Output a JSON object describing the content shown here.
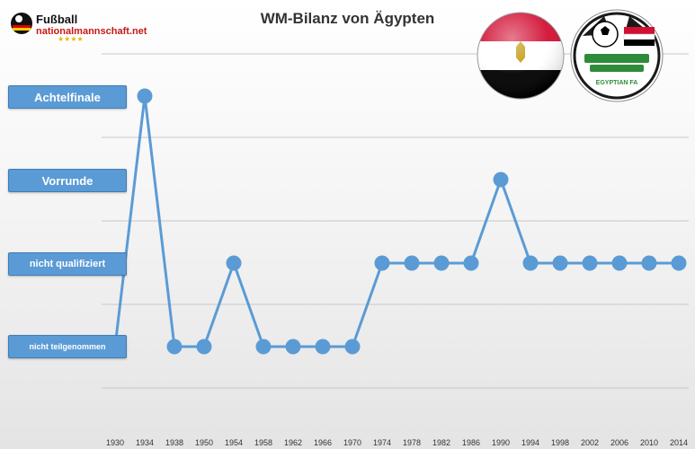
{
  "logo": {
    "line1": "Fußball",
    "line2": "nationalmannschaft.net",
    "stars": "★★★★"
  },
  "chart_data": {
    "type": "line",
    "title": "WM-Bilanz von Ägypten",
    "categories": [
      "1930",
      "1934",
      "1938",
      "1950",
      "1954",
      "1958",
      "1962",
      "1966",
      "1970",
      "1974",
      "1978",
      "1982",
      "1986",
      "1990",
      "1994",
      "1998",
      "2002",
      "2006",
      "2010",
      "2014"
    ],
    "y_levels": [
      "nicht teilgenommen",
      "nicht qualifiziert",
      "Vorrunde",
      "Achtelfinale"
    ],
    "values": [
      0,
      3,
      0,
      0,
      1,
      0,
      0,
      0,
      0,
      1,
      1,
      1,
      1,
      2,
      1,
      1,
      1,
      1,
      1,
      1
    ],
    "grid": true,
    "series_color": "#5b9bd5"
  }
}
